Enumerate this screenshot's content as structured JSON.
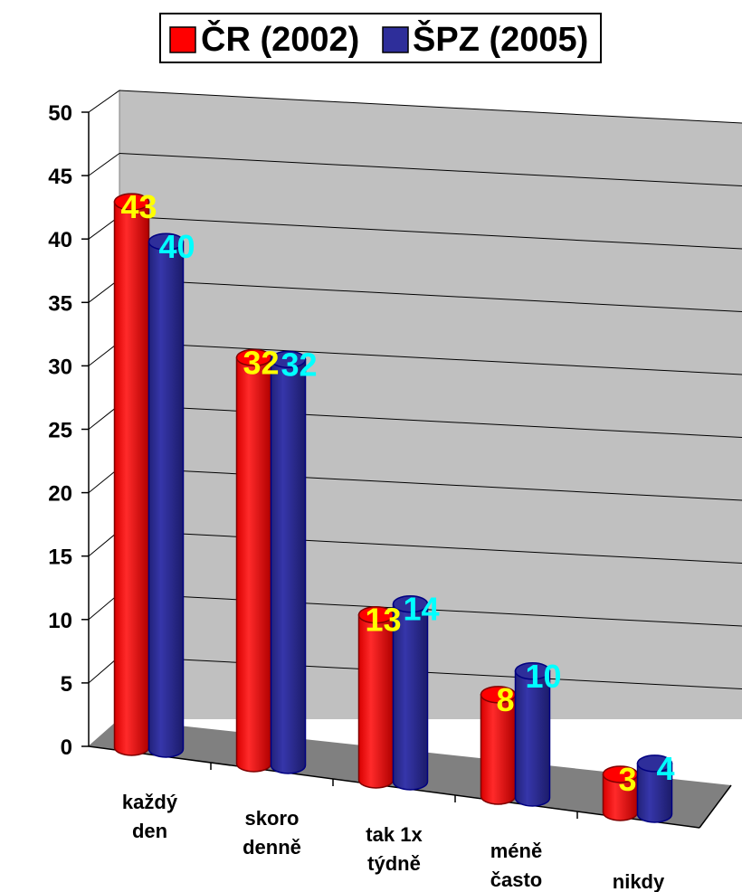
{
  "chart_data": {
    "type": "bar",
    "view": "3d-clustered-cylinder",
    "title": "",
    "xlabel": "",
    "ylabel": "",
    "ylim": [
      0,
      50
    ],
    "yticks": [
      "0",
      "5",
      "10",
      "15",
      "20",
      "25",
      "30",
      "35",
      "40",
      "45",
      "50"
    ],
    "grid": true,
    "legend": "top-center",
    "categories": [
      [
        "každý",
        "den"
      ],
      [
        "skoro",
        "denně"
      ],
      [
        "tak 1x",
        "týdně"
      ],
      [
        "méně",
        "často"
      ],
      [
        "nikdy"
      ]
    ],
    "series": [
      {
        "name": "ČR (2002)",
        "values": [
          43,
          32,
          13,
          8,
          3
        ],
        "color": "#ff0000",
        "label_color": "#ffff00"
      },
      {
        "name": "ŠPZ (2005)",
        "values": [
          40,
          32,
          14,
          10,
          4
        ],
        "color": "#2e2e9a",
        "label_color": "#00ffff"
      }
    ],
    "colors": {
      "wall": "#c0c0c0",
      "floor": "#808080",
      "gridline": "#000000"
    }
  }
}
